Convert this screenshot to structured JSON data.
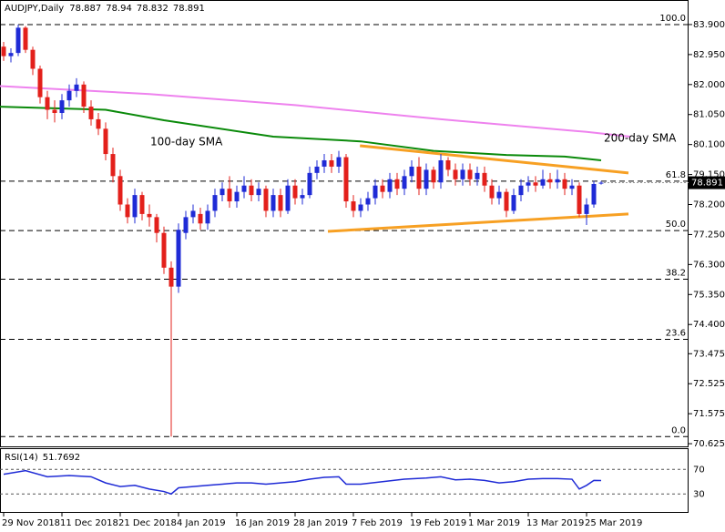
{
  "chart_data": {
    "type": "candlestick",
    "symbol": "AUDJPY,Daily",
    "categories": [
      "29 Nov 2018",
      null,
      null,
      null,
      null,
      null,
      null,
      null,
      "11 Dec 2018",
      null,
      null,
      null,
      null,
      null,
      null,
      null,
      "21 Dec 2018",
      null,
      null,
      null,
      null,
      null,
      null,
      null,
      "4 Jan 2019",
      null,
      null,
      null,
      null,
      null,
      null,
      null,
      "16 Jan 2019",
      null,
      null,
      null,
      null,
      null,
      null,
      null,
      "28 Jan 2019",
      null,
      null,
      null,
      null,
      null,
      null,
      null,
      "7 Feb 2019",
      null,
      null,
      null,
      null,
      null,
      null,
      null,
      "19 Feb 2019",
      null,
      null,
      null,
      null,
      null,
      null,
      null,
      "1 Mar 2019",
      null,
      null,
      null,
      null,
      null,
      null,
      null,
      "13 Mar 2019",
      null,
      null,
      null,
      null,
      null,
      null,
      null,
      "25 Mar 2019",
      null,
      null
    ],
    "open": [
      83.2,
      82.9,
      83.0,
      83.8,
      83.1,
      82.5,
      81.6,
      81.2,
      81.1,
      81.5,
      81.8,
      82.0,
      81.3,
      80.9,
      80.6,
      79.8,
      79.1,
      78.2,
      77.8,
      78.5,
      77.9,
      77.8,
      77.3,
      76.2,
      75.6,
      77.3,
      77.8,
      77.9,
      77.6,
      78.0,
      78.5,
      78.7,
      78.3,
      78.6,
      78.8,
      78.5,
      78.7,
      78.0,
      78.5,
      78.0,
      78.8,
      78.4,
      78.5,
      79.2,
      79.4,
      79.6,
      79.4,
      79.7,
      78.3,
      78.0,
      78.2,
      78.4,
      78.8,
      78.6,
      79.0,
      78.7,
      79.1,
      79.4,
      78.7,
      79.3,
      78.9,
      79.6,
      79.3,
      79.0,
      79.3,
      79.0,
      79.2,
      78.8,
      78.4,
      78.6,
      78.0,
      78.5,
      78.8,
      78.9,
      78.8,
      79.0,
      78.9,
      79.0,
      78.7,
      78.8,
      77.9,
      78.2,
      78.887
    ],
    "high": [
      83.35,
      83.15,
      83.9,
      83.85,
      83.2,
      82.6,
      81.8,
      81.5,
      81.7,
      82.0,
      82.2,
      82.1,
      81.5,
      81.1,
      80.8,
      80.0,
      79.3,
      78.4,
      78.7,
      78.6,
      78.2,
      77.9,
      77.5,
      76.4,
      77.6,
      78.0,
      78.2,
      78.1,
      78.2,
      78.7,
      78.9,
      79.1,
      78.8,
      79.1,
      79.0,
      78.9,
      78.8,
      78.7,
      78.7,
      79.0,
      79.0,
      78.7,
      79.4,
      79.6,
      79.8,
      79.8,
      79.9,
      79.8,
      78.5,
      78.4,
      78.6,
      79.0,
      79.0,
      79.2,
      79.2,
      79.3,
      79.6,
      79.7,
      79.5,
      79.4,
      79.8,
      79.7,
      79.5,
      79.5,
      79.5,
      79.4,
      79.4,
      79.0,
      78.8,
      78.7,
      78.7,
      79.0,
      79.1,
      79.1,
      79.3,
      79.2,
      79.3,
      79.2,
      79.0,
      78.9,
      78.4,
      78.95,
      78.94
    ],
    "low": [
      82.75,
      82.7,
      82.9,
      83.0,
      82.3,
      81.4,
      80.9,
      80.8,
      80.9,
      81.3,
      81.6,
      81.1,
      80.7,
      80.4,
      79.6,
      78.9,
      78.0,
      77.6,
      77.6,
      77.7,
      77.5,
      77.0,
      76.0,
      70.85,
      75.4,
      77.1,
      77.6,
      77.4,
      77.4,
      77.8,
      78.3,
      78.1,
      78.1,
      78.4,
      78.3,
      78.3,
      77.8,
      77.8,
      77.8,
      77.9,
      78.2,
      78.2,
      78.4,
      79.0,
      79.2,
      79.2,
      79.2,
      78.1,
      77.8,
      77.8,
      78.0,
      78.2,
      78.4,
      78.4,
      78.5,
      78.5,
      78.9,
      78.5,
      78.5,
      78.7,
      78.7,
      79.1,
      78.8,
      78.8,
      78.8,
      78.8,
      78.6,
      78.2,
      78.2,
      77.8,
      77.9,
      78.3,
      78.6,
      78.6,
      78.7,
      78.7,
      78.7,
      78.5,
      78.5,
      77.8,
      77.55,
      78.1,
      78.832
    ],
    "close": [
      82.9,
      83.0,
      83.8,
      83.1,
      82.5,
      81.6,
      81.2,
      81.1,
      81.5,
      81.8,
      82.0,
      81.3,
      80.9,
      80.6,
      79.8,
      79.1,
      78.2,
      77.8,
      78.5,
      77.9,
      77.8,
      77.3,
      76.2,
      75.6,
      77.4,
      77.8,
      78.0,
      77.6,
      78.0,
      78.5,
      78.7,
      78.3,
      78.6,
      78.8,
      78.5,
      78.7,
      78.0,
      78.5,
      78.0,
      78.8,
      78.4,
      78.5,
      79.2,
      79.4,
      79.6,
      79.4,
      79.7,
      78.3,
      78.0,
      78.2,
      78.4,
      78.8,
      78.6,
      79.0,
      78.7,
      79.1,
      79.4,
      78.7,
      79.3,
      78.9,
      79.6,
      79.3,
      79.0,
      79.3,
      79.0,
      79.2,
      78.8,
      78.4,
      78.6,
      78.0,
      78.5,
      78.8,
      78.9,
      78.8,
      79.0,
      78.9,
      79.0,
      78.7,
      78.8,
      77.9,
      78.2,
      78.85,
      78.891
    ],
    "up_color": "#1f2bd6",
    "down_color": "#e3201b",
    "ylim": [
      70.54,
      84.62
    ],
    "yticks": [
      {
        "value": 83.9,
        "label": "83.900"
      },
      {
        "value": 82.95,
        "label": "82.950"
      },
      {
        "value": 82.0,
        "label": "82.000"
      },
      {
        "value": 81.05,
        "label": "81.050"
      },
      {
        "value": 80.1,
        "label": "80.100"
      },
      {
        "value": 79.15,
        "label": "79.150"
      },
      {
        "value": 78.2,
        "label": "78.200"
      },
      {
        "value": 77.25,
        "label": "77.250"
      },
      {
        "value": 76.3,
        "label": "76.300"
      },
      {
        "value": 75.35,
        "label": "75.350"
      },
      {
        "value": 74.4,
        "label": "74.400"
      },
      {
        "value": 73.475,
        "label": "73.475"
      },
      {
        "value": 72.525,
        "label": "72.525"
      },
      {
        "value": 71.575,
        "label": "71.575"
      },
      {
        "value": 70.625,
        "label": "70.625"
      }
    ],
    "fib_levels": [
      {
        "value": 83.9,
        "label": "100.0"
      },
      {
        "value": 78.94,
        "label": "61.8"
      },
      {
        "value": 77.375,
        "label": "50.0"
      },
      {
        "value": 75.835,
        "label": "38.2"
      },
      {
        "value": 73.93,
        "label": "23.6"
      },
      {
        "value": 70.85,
        "label": "0.0"
      }
    ],
    "overlays": [
      {
        "name": "200-day SMA",
        "color": "#ee82ee",
        "x": [
          -0.5,
          20,
          40,
          60,
          80,
          86
        ],
        "values": [
          81.95,
          81.7,
          81.35,
          80.9,
          80.5,
          80.35
        ]
      },
      {
        "name": "100-day SMA",
        "color": "#0a8a0a",
        "x": [
          -0.5,
          14,
          22,
          37,
          49,
          59,
          69,
          77,
          82
        ],
        "values": [
          81.3,
          81.2,
          80.87,
          80.35,
          80.2,
          79.9,
          79.77,
          79.72,
          79.6
        ]
      }
    ],
    "trendlines": [
      {
        "color": "#f7a023",
        "x": [
          48.9,
          85.75
        ],
        "values": [
          80.06,
          79.2
        ]
      },
      {
        "color": "#f7a023",
        "x": [
          44.5,
          85.75
        ],
        "values": [
          77.35,
          77.9
        ]
      }
    ],
    "rsi": {
      "name": "RSI(14)",
      "color": "#1f2bd6",
      "x": [
        0,
        3,
        6,
        9,
        12,
        14,
        16,
        18,
        20,
        22,
        23,
        24,
        26,
        28,
        30,
        32,
        34,
        36,
        38,
        40,
        42,
        44,
        46,
        47,
        49,
        52,
        55,
        58,
        60,
        62,
        64,
        66,
        68,
        70,
        72,
        74,
        76,
        78,
        79,
        80,
        81,
        82
      ],
      "values": [
        62,
        68,
        58,
        60,
        58,
        48,
        42,
        44,
        38,
        34,
        30,
        40,
        42,
        44,
        46,
        48,
        48,
        46,
        48,
        50,
        54,
        57,
        58,
        46,
        46,
        50,
        54,
        56,
        58,
        53,
        54,
        52,
        48,
        50,
        54,
        55,
        55,
        54,
        38,
        44,
        52,
        51.7692
      ],
      "ylim": [
        0,
        100
      ],
      "yticks": [
        70,
        30
      ]
    }
  }
}
